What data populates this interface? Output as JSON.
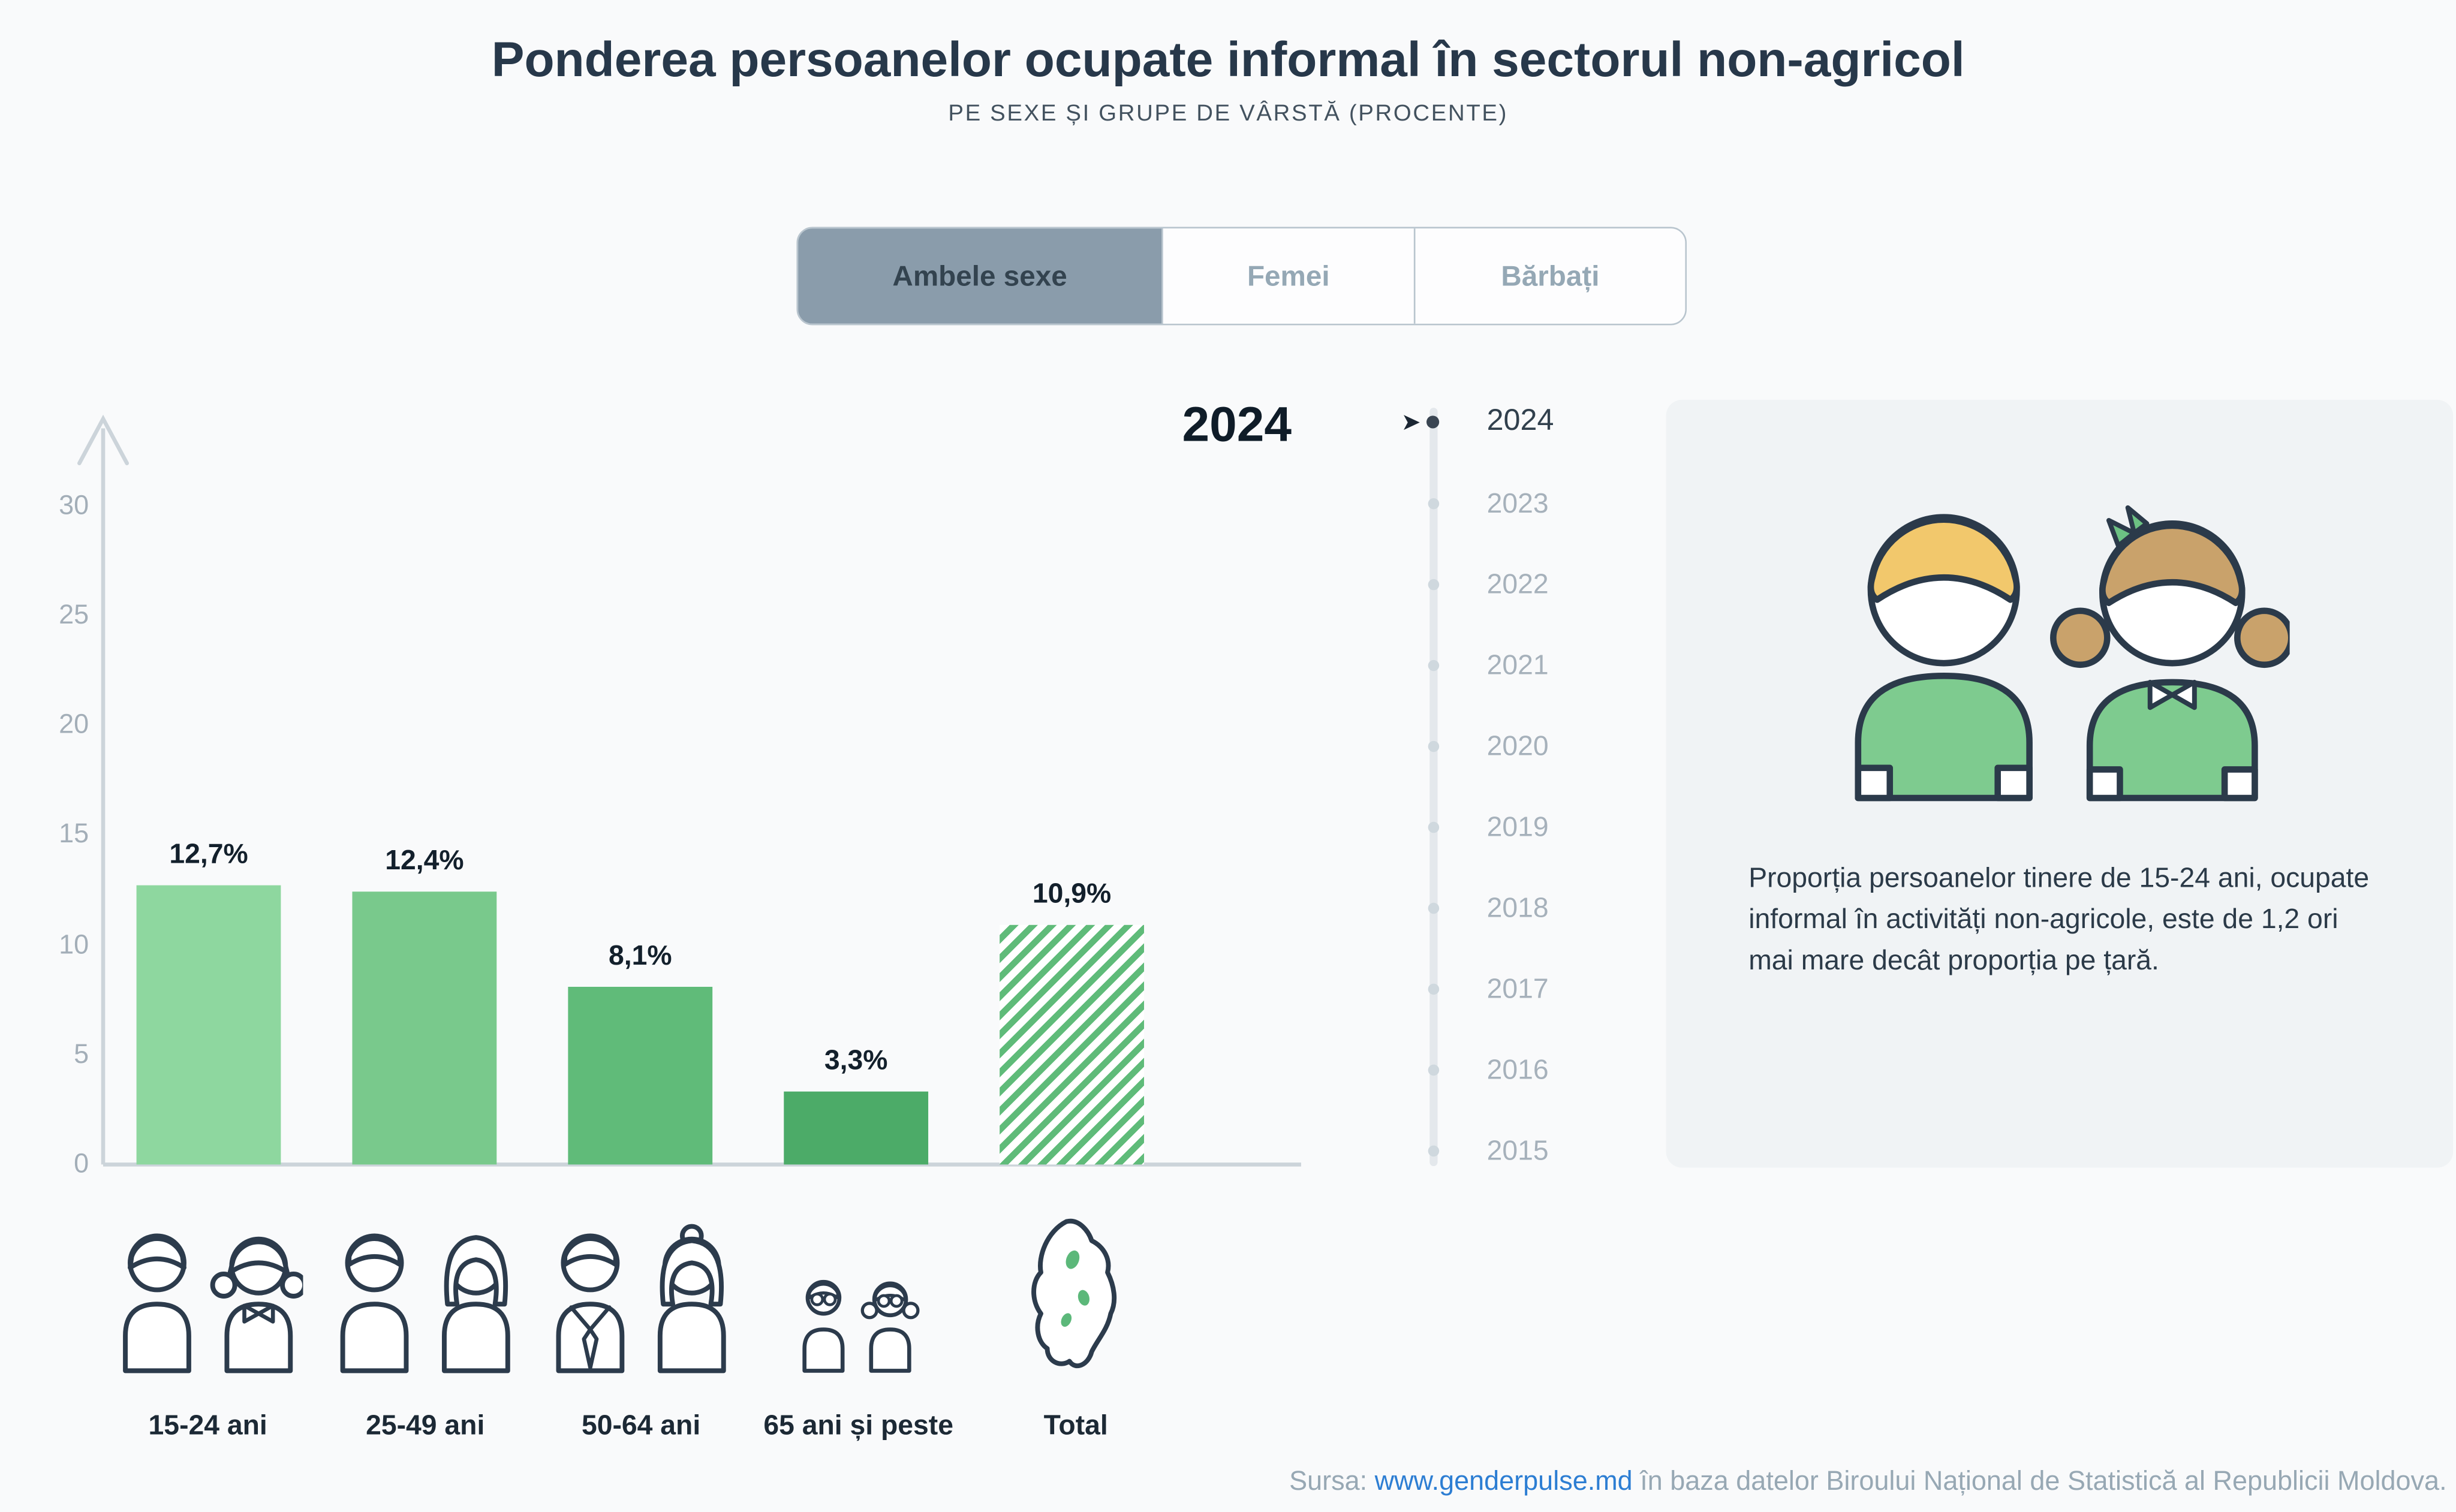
{
  "page": {
    "title": "Ponderea persoanelor ocupate informal în sectorul non-agricol",
    "subtitle": "PE SEXE ȘI GRUPE DE VÂRSTĂ (PROCENTE)"
  },
  "tabs": [
    {
      "label": "Ambele sexe",
      "active": true
    },
    {
      "label": "Femei",
      "active": false
    },
    {
      "label": "Bărbați",
      "active": false
    }
  ],
  "year_display": "2024",
  "timeline": {
    "years": [
      "2024",
      "2023",
      "2022",
      "2021",
      "2020",
      "2019",
      "2018",
      "2017",
      "2016",
      "2015"
    ],
    "active": "2024"
  },
  "icons": {
    "active_year_marker": "➤"
  },
  "chart_data": {
    "type": "bar",
    "title": "Ponderea persoanelor ocupate informal în sectorul non-agricol",
    "subtitle": "PE SEXE ȘI GRUPE DE VÂRSTĂ (PROCENTE)",
    "year": "2024",
    "categories": [
      "15-24 ani",
      "25-49 ani",
      "50-64 ani",
      "65 ani și peste",
      "Total"
    ],
    "values": [
      12.7,
      12.4,
      8.1,
      3.3,
      10.9
    ],
    "labels": [
      "12,7%",
      "12,4%",
      "8,1%",
      "3,3%",
      "10,9%"
    ],
    "ylim": [
      0,
      30
    ],
    "yticks": [
      0,
      5,
      10,
      15,
      20,
      25,
      30
    ],
    "bar_colors": [
      "#8ed79f",
      "#79c98c",
      "#60bb79",
      "#4cab68",
      "hatch"
    ],
    "grid": false,
    "legend": "none"
  },
  "info_panel": {
    "text": "Proporția persoanelor tinere de 15-24 ani, ocupate informal în activități non-agricole, este de 1,2 ori mai mare decât proporția pe țară."
  },
  "footer": {
    "prefix": "Sursa: ",
    "link": "www.genderpulse.md",
    "suffix": " în baza datelor Biroului Național de Statistică al Republicii Moldova."
  }
}
